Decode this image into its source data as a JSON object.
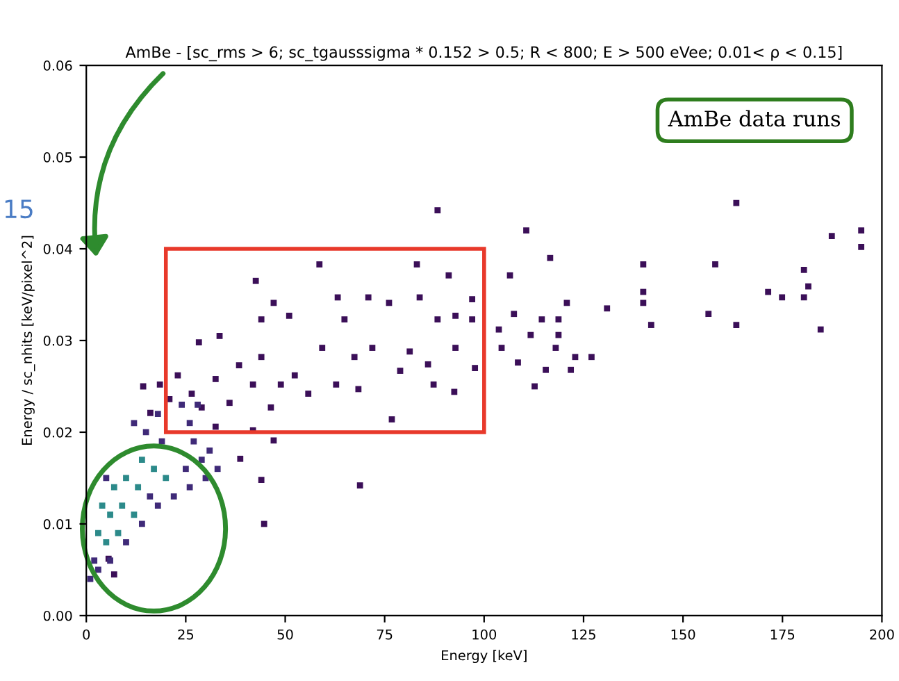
{
  "chart_data": {
    "type": "scatter",
    "title": "AmBe - [sc_rms > 6; sc_tgausssigma * 0.152 > 0.5; R < 800; E > 500 eVee; 0.01< ρ < 0.15]",
    "xlabel": "Energy [keV]",
    "ylabel": "Energy / sc_nhits [keV/pixel^2]",
    "xlim": [
      0,
      200
    ],
    "xticks": [
      0,
      25,
      50,
      75,
      100,
      125,
      150,
      175,
      200
    ],
    "ylim": [
      0,
      0.06
    ],
    "yticks": [
      {
        "value": 0,
        "label": "0.00"
      },
      {
        "value": 0.01,
        "label": "0.01"
      },
      {
        "value": 0.02,
        "label": "0.02"
      },
      {
        "value": 0.03,
        "label": "0.03"
      },
      {
        "value": 0.04,
        "label": "0.04"
      },
      {
        "value": 0.05,
        "label": "0.05"
      },
      {
        "value": 0.06,
        "label": "0.06"
      }
    ],
    "marker": "square",
    "grid": false,
    "legend": false,
    "annotations": [
      "AmBe data runs",
      "15"
    ],
    "series": [
      {
        "color": "#3b0f58",
        "x": [
          163.4,
          194.8,
          194.8,
          187.4,
          180.4,
          181.5,
          180.4,
          174.9,
          171.4,
          184.6,
          158.1,
          156.4,
          163.4,
          140,
          140,
          140,
          142,
          110.6,
          116.6,
          106.5,
          120.8,
          130.9,
          107.5,
          114.5,
          118.7,
          111.7,
          118.7,
          118,
          104.4,
          108.5,
          115.5,
          121.8,
          122.9,
          127,
          112.7,
          103.7,
          88.3,
          58.6,
          83.1,
          91.1,
          42.6,
          47.1,
          28.3,
          33.5,
          44,
          51,
          63.2,
          70.9,
          83.8,
          76.1,
          64.9,
          88.3,
          97,
          97,
          92.8,
          59.3,
          71.9,
          81.3,
          92.8,
          44,
          52.4,
          67.4,
          78.9,
          85.9,
          97.7,
          87.3,
          92.5,
          68.4,
          62.8,
          55.8,
          48.9,
          38.4,
          32.5,
          26.5,
          23,
          20.9,
          18.5,
          14.3,
          16.1,
          41.9,
          29,
          36,
          46.4,
          76.8,
          47.1,
          38.7,
          44,
          68.8,
          44.7,
          7,
          5.6,
          41.9,
          32.5
        ],
        "values": [
          0.045,
          0.042,
          0.0402,
          0.0414,
          0.0377,
          0.0359,
          0.0347,
          0.0347,
          0.0353,
          0.0312,
          0.0383,
          0.0329,
          0.0317,
          0.0383,
          0.0353,
          0.0341,
          0.0317,
          0.042,
          0.039,
          0.0371,
          0.0341,
          0.0335,
          0.0329,
          0.0323,
          0.0323,
          0.0306,
          0.0306,
          0.0292,
          0.0292,
          0.0276,
          0.0268,
          0.0268,
          0.0282,
          0.0282,
          0.025,
          0.0312,
          0.0442,
          0.0383,
          0.0383,
          0.0371,
          0.0365,
          0.0341,
          0.0298,
          0.0305,
          0.0323,
          0.0327,
          0.0347,
          0.0347,
          0.0347,
          0.0341,
          0.0323,
          0.0323,
          0.0345,
          0.0323,
          0.0327,
          0.0292,
          0.0292,
          0.0288,
          0.0292,
          0.0282,
          0.0262,
          0.0282,
          0.0267,
          0.0274,
          0.027,
          0.0252,
          0.0244,
          0.0247,
          0.0252,
          0.0242,
          0.0252,
          0.0273,
          0.0258,
          0.0242,
          0.0262,
          0.0236,
          0.0252,
          0.025,
          0.0221,
          0.0252,
          0.0227,
          0.0232,
          0.0227,
          0.0214,
          0.0191,
          0.0171,
          0.0148,
          0.0142,
          0.01,
          0.0045,
          0.0062,
          0.0202,
          0.0206
        ]
      },
      {
        "color": "#3f2a78",
        "x": [
          1,
          2,
          3,
          5,
          6,
          15,
          14,
          19,
          18,
          22,
          26,
          29,
          31,
          33,
          30,
          12,
          26,
          28,
          24,
          18,
          16,
          27,
          25,
          10
        ],
        "values": [
          0.004,
          0.006,
          0.005,
          0.015,
          0.006,
          0.02,
          0.01,
          0.019,
          0.012,
          0.013,
          0.014,
          0.017,
          0.018,
          0.016,
          0.015,
          0.021,
          0.021,
          0.023,
          0.023,
          0.022,
          0.013,
          0.019,
          0.016,
          0.008
        ]
      },
      {
        "color": "#2c8a8a",
        "x": [
          3,
          4,
          5,
          6,
          7,
          8,
          9,
          10,
          12,
          13,
          14,
          17,
          20
        ],
        "values": [
          0.009,
          0.012,
          0.008,
          0.011,
          0.014,
          0.009,
          0.012,
          0.015,
          0.011,
          0.014,
          0.017,
          0.016,
          0.015
        ]
      }
    ]
  }
}
